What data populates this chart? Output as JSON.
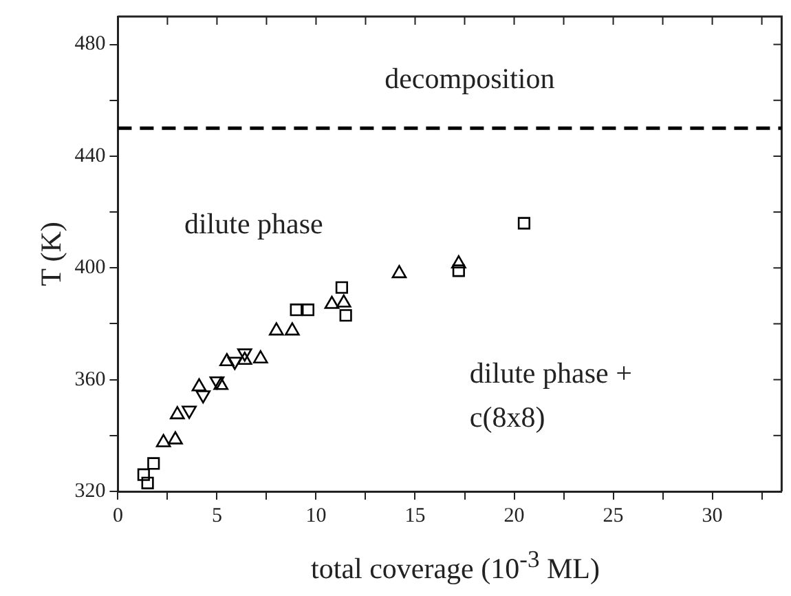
{
  "chart_data": {
    "type": "scatter",
    "xlabel": "total coverage (10$^{-3}$ ML)",
    "ylabel": "T (K)",
    "xlim": [
      0,
      33.5
    ],
    "ylim": [
      320,
      490
    ],
    "xticks": [
      0,
      {
        "value": 2.5,
        "label": null
      },
      5,
      {
        "value": 7.5,
        "label": null
      },
      10,
      {
        "value": 12.5,
        "label": null
      },
      15,
      {
        "value": 17.5,
        "label": null
      },
      20,
      {
        "value": 22.5,
        "label": null
      },
      25,
      {
        "value": 27.5,
        "label": null
      },
      30,
      {
        "value": 32.5,
        "label": null
      }
    ],
    "yticks": [
      320,
      {
        "value": 340,
        "label": null
      },
      360,
      {
        "value": 380,
        "label": null
      },
      400,
      {
        "value": 420,
        "label": null
      },
      440,
      {
        "value": 460,
        "label": null
      },
      480
    ],
    "grid": false,
    "legend": false,
    "series": [
      {
        "marker": "square",
        "color": "#000000",
        "x": [
          1.3,
          1.5,
          1.8,
          9.0,
          9.6,
          11.3,
          11.5,
          17.2,
          20.5
        ],
        "values": [
          326,
          323,
          330,
          385,
          385,
          393,
          383,
          399,
          416
        ]
      },
      {
        "marker": "triangle",
        "color": "#000000",
        "x": [
          2.3,
          2.9,
          3.0,
          4.1,
          5.2,
          5.5,
          6.4,
          7.2,
          8.0,
          8.8,
          10.8,
          11.4,
          14.2,
          17.2
        ],
        "values": [
          337.5,
          338.5,
          347.5,
          357.5,
          358,
          366.5,
          367,
          367.5,
          377.5,
          377.5,
          387,
          387.5,
          398,
          401.5
        ]
      },
      {
        "marker": "triangle-down",
        "color": "#000000",
        "x": [
          3.6,
          4.3,
          5.0,
          5.9,
          6.4
        ],
        "values": [
          349,
          354.5,
          359.5,
          366.5,
          369.5
        ]
      }
    ],
    "ref_lines": [
      {
        "axis": "y",
        "value": 450,
        "color": "#000000",
        "line_style": "dashed"
      }
    ],
    "annotations": [
      "decomposition",
      "dilute phase",
      "dilute phase + c(8x8)"
    ]
  }
}
